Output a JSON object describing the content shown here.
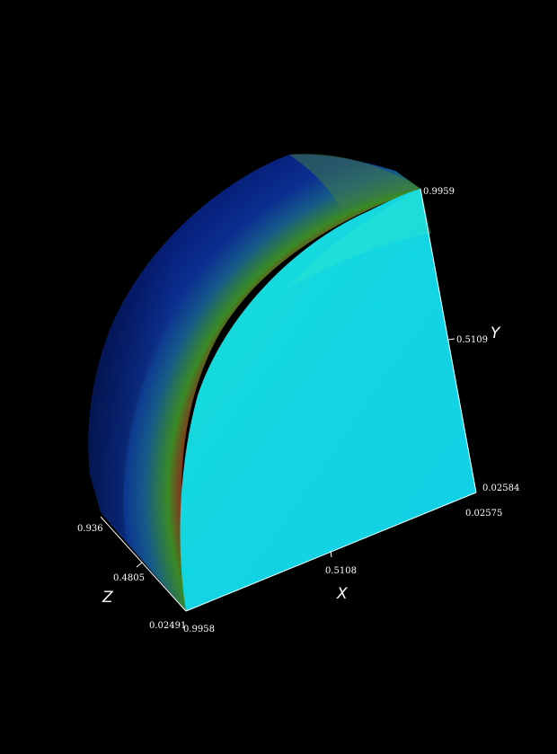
{
  "scene": {
    "background_color": "#000000",
    "object": "quarter-sphere-shell",
    "colors": {
      "outer_surface": "#0a2a8a",
      "band_peak": "#b01010",
      "band_mid": "#2e8a22",
      "cut_face": "#12d8e0",
      "axis_color": "#ffffff"
    }
  },
  "axes": {
    "x": {
      "label": "X",
      "ticks": [
        "0.9958",
        "0.5108",
        "0.02575"
      ]
    },
    "y": {
      "label": "Y",
      "ticks": [
        "0.02584",
        "0.5109",
        "0.9959"
      ]
    },
    "z": {
      "label": "Z",
      "ticks": [
        "0.02491",
        "0.4805",
        "0.936"
      ]
    }
  }
}
